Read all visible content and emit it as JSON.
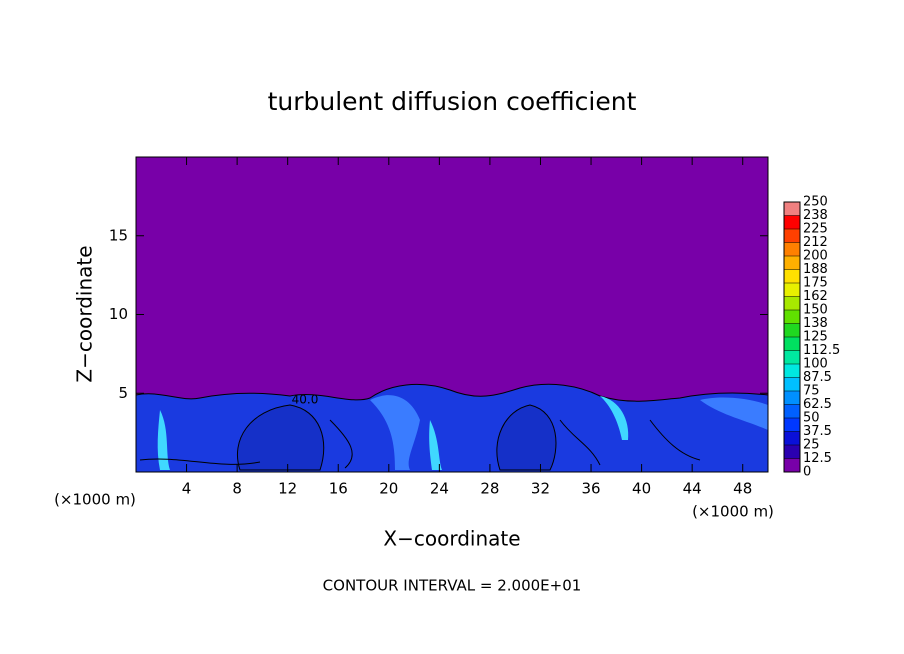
{
  "chart_data": {
    "type": "contour",
    "title": "turbulent diffusion coefficient",
    "x_label": "X−coordinate",
    "y_label": "Z−coordinate",
    "x_unit": "(×1000 m)",
    "y_unit": "(×1000 m)",
    "footer": "CONTOUR INTERVAL = 2.000E+01",
    "contour_label": "40.0",
    "xlim": [
      0,
      50
    ],
    "ylim": [
      0,
      20
    ],
    "xticks": [
      4,
      8,
      12,
      16,
      20,
      24,
      28,
      32,
      36,
      40,
      44,
      48
    ],
    "yticks": [
      5,
      10,
      15
    ],
    "colorbar": {
      "clim": [
        0,
        250
      ],
      "ticks": [
        0,
        12.5,
        25,
        37.5,
        50,
        62.5,
        75,
        87.5,
        100,
        112.5,
        125,
        {
          "value": 137.5,
          "label": "138"
        },
        150,
        {
          "value": 162.5,
          "label": "162"
        },
        175,
        {
          "value": 187.5,
          "label": "188"
        },
        200,
        {
          "value": 212.5,
          "label": "212"
        },
        225,
        {
          "value": 237.5,
          "label": "238"
        },
        250
      ],
      "colors": [
        "#7800a8",
        "#2a00b0",
        "#0a10d8",
        "#0038ff",
        "#0060ff",
        "#0090ff",
        "#00c0ff",
        "#00e8e0",
        "#00e8a0",
        "#00e060",
        "#20d820",
        "#60e000",
        "#a8e800",
        "#e8f000",
        "#ffe000",
        "#ffb000",
        "#ff8000",
        "#ff4000",
        "#ff0000",
        "#f08080"
      ]
    }
  }
}
